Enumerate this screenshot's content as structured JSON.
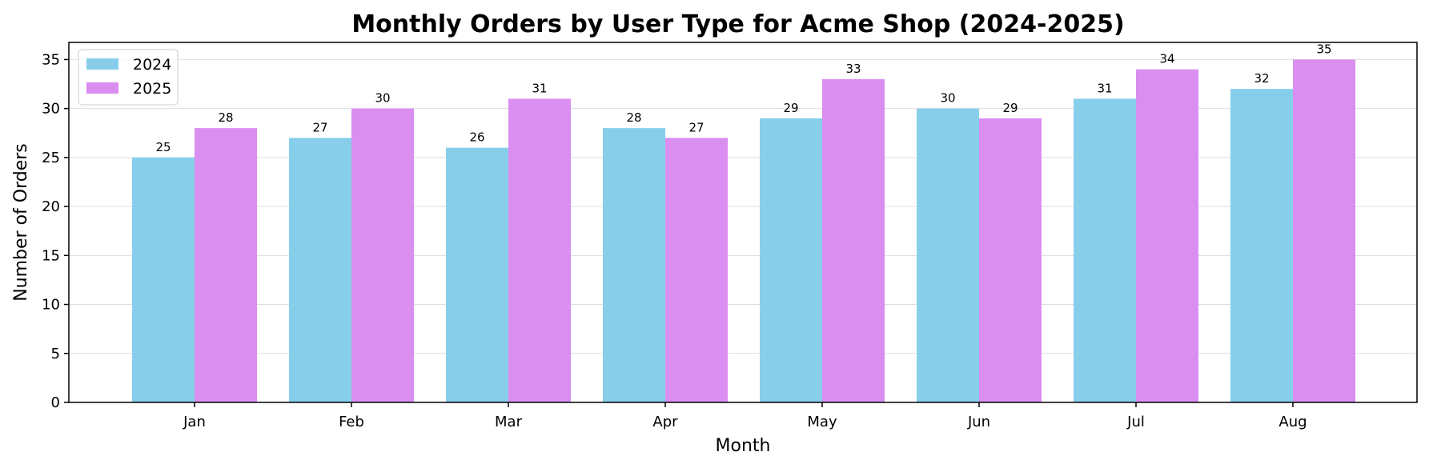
{
  "chart_data": {
    "type": "bar",
    "title": "Monthly Orders by User Type for Acme Shop (2024-2025)",
    "xlabel": "Month",
    "ylabel": "Number of Orders",
    "categories": [
      "Jan",
      "Feb",
      "Mar",
      "Apr",
      "May",
      "Jun",
      "Jul",
      "Aug"
    ],
    "series": [
      {
        "name": "2024",
        "color": "#87CEEB",
        "values": [
          25,
          27,
          26,
          28,
          29,
          30,
          31,
          32
        ]
      },
      {
        "name": "2025",
        "color": "#DA8EF0",
        "values": [
          28,
          30,
          31,
          27,
          33,
          29,
          34,
          35
        ]
      }
    ],
    "ylim": [
      0,
      36.75
    ],
    "yticks": [
      0,
      5,
      10,
      15,
      20,
      25,
      30,
      35
    ],
    "grid": "horizontal",
    "legend_position": "top-left",
    "data_labels": true
  }
}
